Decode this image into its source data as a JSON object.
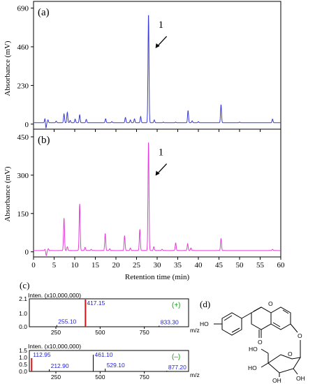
{
  "chart_data": [
    {
      "panel": "(a)",
      "type": "line",
      "ylabel": "Absorbance (mV)",
      "xlim": [
        0,
        60
      ],
      "ylim": [
        -30,
        730
      ],
      "yticks": [
        0,
        230,
        460,
        690
      ],
      "color": "#3b3bd6",
      "baseline": 8,
      "peaks": [
        {
          "x": 2.8,
          "y": 38
        },
        {
          "x": 3.0,
          "y": -28
        },
        {
          "x": 3.5,
          "y": 25
        },
        {
          "x": 5.5,
          "y": 18
        },
        {
          "x": 7.4,
          "y": 60
        },
        {
          "x": 8.2,
          "y": 70
        },
        {
          "x": 8.9,
          "y": 22
        },
        {
          "x": 10.1,
          "y": 30
        },
        {
          "x": 11.2,
          "y": 55
        },
        {
          "x": 12.8,
          "y": 28
        },
        {
          "x": 17.5,
          "y": 32
        },
        {
          "x": 19.0,
          "y": 15
        },
        {
          "x": 22.3,
          "y": 40
        },
        {
          "x": 23.5,
          "y": 25
        },
        {
          "x": 24.5,
          "y": 32
        },
        {
          "x": 26.0,
          "y": 45
        },
        {
          "x": 27.9,
          "y": 655
        },
        {
          "x": 29.3,
          "y": 25
        },
        {
          "x": 31.5,
          "y": 12
        },
        {
          "x": 34.5,
          "y": 12
        },
        {
          "x": 37.5,
          "y": 80
        },
        {
          "x": 38.5,
          "y": 20
        },
        {
          "x": 40.0,
          "y": 15
        },
        {
          "x": 45.5,
          "y": 115
        },
        {
          "x": 50.0,
          "y": 12
        },
        {
          "x": 58.0,
          "y": 30
        }
      ],
      "peak_label": "1",
      "xaxis_labels": false
    },
    {
      "panel": "(b)",
      "type": "line",
      "ylabel": "Absorbance (mV)",
      "xlabel": "Retention time (min)",
      "xlim": [
        0,
        60
      ],
      "ylim": [
        -20,
        480
      ],
      "yticks": [
        0,
        150,
        300,
        450
      ],
      "xticks": [
        0,
        5,
        10,
        15,
        20,
        25,
        30,
        35,
        40,
        45,
        50,
        55,
        60
      ],
      "color": "#e040d8",
      "baseline": 5,
      "peaks": [
        {
          "x": 2.8,
          "y": 10
        },
        {
          "x": 3.1,
          "y": -15
        },
        {
          "x": 3.6,
          "y": 12
        },
        {
          "x": 7.4,
          "y": 132
        },
        {
          "x": 8.2,
          "y": 20
        },
        {
          "x": 11.2,
          "y": 188
        },
        {
          "x": 12.5,
          "y": 18
        },
        {
          "x": 14.0,
          "y": 10
        },
        {
          "x": 17.4,
          "y": 72
        },
        {
          "x": 18.5,
          "y": 12
        },
        {
          "x": 22.1,
          "y": 63
        },
        {
          "x": 23.5,
          "y": 15
        },
        {
          "x": 25.8,
          "y": 88
        },
        {
          "x": 27.9,
          "y": 432
        },
        {
          "x": 29.2,
          "y": 20
        },
        {
          "x": 31.2,
          "y": 10
        },
        {
          "x": 34.5,
          "y": 35
        },
        {
          "x": 37.4,
          "y": 32
        },
        {
          "x": 38.2,
          "y": 15
        },
        {
          "x": 45.5,
          "y": 52
        },
        {
          "x": 58.0,
          "y": 10
        }
      ],
      "peak_label": "1",
      "xaxis_labels": true
    }
  ],
  "ms": {
    "panel": "(c)",
    "inten_label": "Inten.  (x10,000,000)",
    "mz_label": "m/z",
    "xlim": [
      100,
      1000
    ],
    "xticks": [
      250,
      500,
      750
    ],
    "pos": {
      "sign": "(+)",
      "ylim": [
        0,
        2.1
      ],
      "yticks": [
        "2.1",
        "1.0",
        "0.0"
      ],
      "peaks": [
        {
          "mz": 255.1,
          "i": 0.12,
          "label": "255.10"
        },
        {
          "mz": 417.15,
          "i": 2.05,
          "label": "417.15",
          "color": "#e01010"
        },
        {
          "mz": 833.3,
          "i": 0.08,
          "label": "833.30"
        }
      ]
    },
    "neg": {
      "sign": "(–)",
      "ylim": [
        0,
        1.5
      ],
      "yticks": [
        "1.5",
        "1.0",
        "0.5",
        "0.0"
      ],
      "peaks": [
        {
          "mz": 112.95,
          "i": 0.95,
          "label": "112.95",
          "color": "#e01010"
        },
        {
          "mz": 212.9,
          "i": 0.15,
          "label": "212.90"
        },
        {
          "mz": 461.1,
          "i": 1.2,
          "label": "461.10"
        },
        {
          "mz": 529.1,
          "i": 0.2,
          "label": "529.10"
        },
        {
          "mz": 877.2,
          "i": 0.05,
          "label": "877.20"
        }
      ]
    }
  },
  "structure": {
    "panel": "(d)",
    "atoms": [
      "HO",
      "O",
      "O",
      "O",
      "O",
      "HO",
      "HO",
      "OH",
      "OH"
    ]
  }
}
